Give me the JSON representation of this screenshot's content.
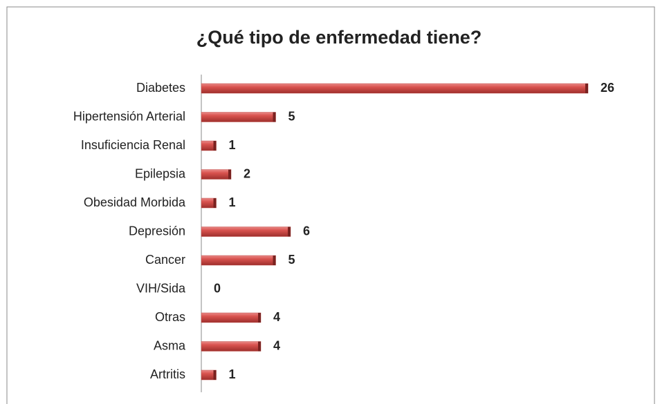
{
  "chart_data": {
    "type": "bar",
    "orientation": "horizontal",
    "title": "¿Qué tipo de enfermedad tiene?",
    "categories": [
      "Diabetes",
      "Hipertensión Arterial",
      "Insuficiencia Renal",
      "Epilepsia",
      "Obesidad Morbida",
      "Depresión",
      "Cancer",
      "VIH/Sida",
      "Otras",
      "Asma",
      "Artritis"
    ],
    "values": [
      26,
      5,
      1,
      2,
      1,
      6,
      5,
      0,
      4,
      4,
      1
    ],
    "color": "#c0504d"
  }
}
